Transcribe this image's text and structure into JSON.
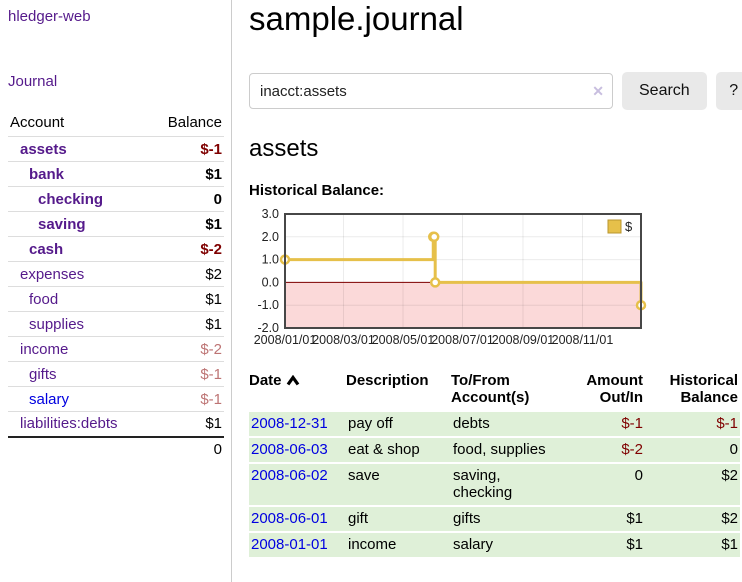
{
  "colors": {
    "link_visited_purple": "#551a8b",
    "link_blue": "#0000e0",
    "negative_bold_red": "#7f0000",
    "negative_muted_red": "#bd7474",
    "table_row_green": "#dff0d8",
    "button_gray": "#e9e9e9",
    "chart_line_gold": "#e6c04a",
    "chart_negative_fill_pink": "#fbd9d9",
    "chart_zero_line_red": "#7f0000"
  },
  "sidebar": {
    "brand": "hledger-web",
    "nav_journal": "Journal",
    "accounts": {
      "header_account": "Account",
      "header_balance": "Balance",
      "rows": [
        {
          "name": "assets",
          "indent": 0,
          "balance": "$-1",
          "bold": true,
          "negative": true,
          "blue": false
        },
        {
          "name": "bank",
          "indent": 1,
          "balance": "$1",
          "bold": true,
          "negative": false,
          "blue": false
        },
        {
          "name": "checking",
          "indent": 2,
          "balance": "0",
          "bold": true,
          "negative": false,
          "blue": false
        },
        {
          "name": "saving",
          "indent": 2,
          "balance": "$1",
          "bold": true,
          "negative": false,
          "blue": false
        },
        {
          "name": "cash",
          "indent": 1,
          "balance": "$-2",
          "bold": true,
          "negative": true,
          "blue": false
        },
        {
          "name": "expenses",
          "indent": 0,
          "balance": "$2",
          "bold": false,
          "negative": false,
          "blue": false
        },
        {
          "name": "food",
          "indent": 1,
          "balance": "$1",
          "bold": false,
          "negative": false,
          "blue": false
        },
        {
          "name": "supplies",
          "indent": 1,
          "balance": "$1",
          "bold": false,
          "negative": false,
          "blue": false
        },
        {
          "name": "income",
          "indent": 0,
          "balance": "$-2",
          "bold": false,
          "negative": true,
          "blue": false
        },
        {
          "name": "gifts",
          "indent": 1,
          "balance": "$-1",
          "bold": false,
          "negative": true,
          "blue": false
        },
        {
          "name": "salary",
          "indent": 1,
          "balance": "$-1",
          "bold": false,
          "negative": true,
          "blue": true
        },
        {
          "name": "liabilities:debts",
          "indent": 0,
          "balance": "$1",
          "bold": false,
          "negative": false,
          "blue": false
        }
      ],
      "total": "0"
    }
  },
  "main": {
    "title": "sample.journal",
    "search": {
      "value": "inacct:assets",
      "clear_icon": "✕",
      "search_button": "Search",
      "help_button": "?"
    },
    "account_heading": "assets",
    "chart_title": "Historical Balance:"
  },
  "register": {
    "headers": {
      "date": "Date",
      "description": "Description",
      "accounts_line1": "To/From",
      "accounts_line2": "Account(s)",
      "amount_line1": "Amount",
      "amount_line2": "Out/In",
      "balance_line1": "Historical",
      "balance_line2": "Balance"
    },
    "rows": [
      {
        "date": "2008-12-31",
        "description": "pay off",
        "accounts": "debts",
        "amount": "$-1",
        "balance": "$-1",
        "amount_negative": true,
        "balance_negative": true
      },
      {
        "date": "2008-06-03",
        "description": "eat & shop",
        "accounts": "food, supplies",
        "amount": "$-2",
        "balance": "0",
        "amount_negative": true,
        "balance_negative": false
      },
      {
        "date": "2008-06-02",
        "description": "save",
        "accounts": "saving, checking",
        "amount": "0",
        "balance": "$2",
        "amount_negative": false,
        "balance_negative": false
      },
      {
        "date": "2008-06-01",
        "description": "gift",
        "accounts": "gifts",
        "amount": "$1",
        "balance": "$2",
        "amount_negative": false,
        "balance_negative": false
      },
      {
        "date": "2008-01-01",
        "description": "income",
        "accounts": "salary",
        "amount": "$1",
        "balance": "$1",
        "amount_negative": false,
        "balance_negative": false
      }
    ]
  },
  "chart_data": {
    "type": "line",
    "title": "Historical Balance:",
    "step": true,
    "grid": true,
    "x_ticks": [
      "2008/01/01",
      "2008/03/01",
      "2008/05/01",
      "2008/07/01",
      "2008/09/01",
      "2008/11/01"
    ],
    "y_ticks": [
      "3.0",
      "2.0",
      "1.0",
      "0.0",
      "-1.0",
      "-2.0"
    ],
    "ylim": [
      -2,
      3
    ],
    "x_range": [
      "2008-01-01",
      "2008-12-31"
    ],
    "legend": {
      "label": "$",
      "position": "top-right",
      "swatch_color": "#e6c04a",
      "swatch_border": "#b8962f"
    },
    "negative_region_color": "#fbd9d9",
    "zero_line_color": "#7f0000",
    "series": [
      {
        "name": "$",
        "color": "#e6c04a",
        "marker": "open-circle",
        "points": [
          {
            "date": "2008-01-01",
            "value": 1
          },
          {
            "date": "2008-06-01",
            "value": 2
          },
          {
            "date": "2008-06-02",
            "value": 2
          },
          {
            "date": "2008-06-03",
            "value": 0
          },
          {
            "date": "2008-12-31",
            "value": -1
          }
        ]
      }
    ]
  }
}
